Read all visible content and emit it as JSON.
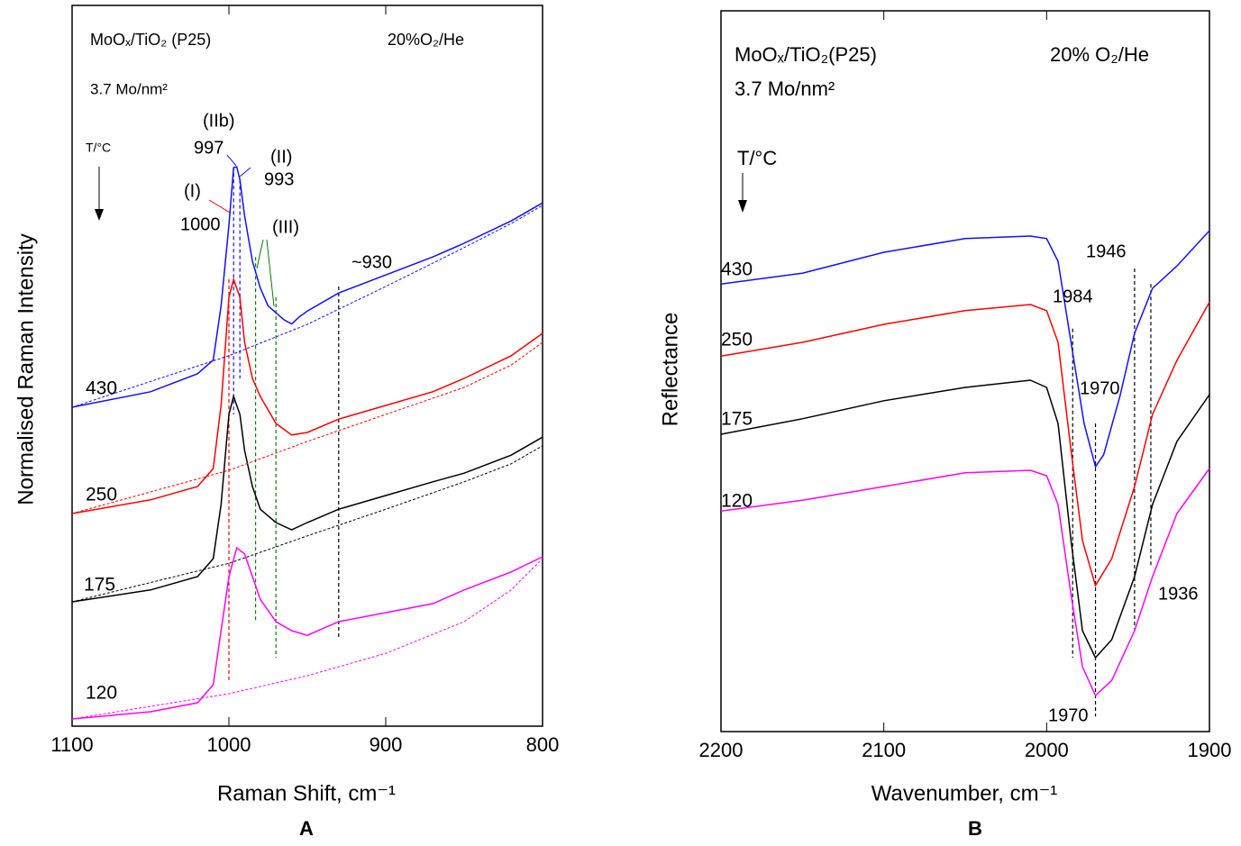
{
  "chart_data": [
    {
      "type": "line",
      "panel_label": "A",
      "x_label": "Raman Shift, cm⁻¹",
      "y_label": "Normalised Raman Intensity",
      "xlim": [
        1100,
        800
      ],
      "xticks": [
        1100,
        1000,
        900,
        800
      ],
      "ylim": [
        0,
        100
      ],
      "annotations": [
        {
          "text": "MoOₓ/TiO₂ (P25)",
          "color": "#000000"
        },
        {
          "text": "20%O₂/He",
          "color": "#000000"
        },
        {
          "text": "3.7 Mo/nm²",
          "color": "#000000"
        },
        {
          "text": "T/°C",
          "color": "#000000"
        },
        {
          "text": "(IIb)",
          "color": "#1010ff"
        },
        {
          "text": "997",
          "color": "#1010ff"
        },
        {
          "text": "(II)",
          "color": "#1010ff"
        },
        {
          "text": "993",
          "color": "#1010ff"
        },
        {
          "text": "(I)",
          "color": "#ff0000"
        },
        {
          "text": "1000",
          "color": "#ff0000"
        },
        {
          "text": "(III)",
          "color": "#008000"
        },
        {
          "text": "~930",
          "color": "#000000"
        }
      ],
      "reference_lines": [
        {
          "x": 1000,
          "y": [
            62,
            6
          ],
          "color": "#ff0000"
        },
        {
          "x": 997,
          "y": [
            77.6,
            43.25
          ],
          "color": "#1010ff"
        },
        {
          "x": 993,
          "y": [
            75.8,
            48.25
          ],
          "color": "#1010ff"
        },
        {
          "x": 983,
          "y": [
            65.1,
            14.5
          ],
          "color": "#008000"
        },
        {
          "x": 970,
          "y": [
            59.5,
            9.5
          ],
          "color": "#008000"
        },
        {
          "x": 930,
          "y": [
            61,
            12
          ],
          "color": "#000000"
        }
      ],
      "series": [
        {
          "name": "430",
          "color": "#1010ff",
          "x": [
            1100,
            1050,
            1020,
            1010,
            1005,
            1000,
            997,
            995,
            993,
            990,
            985,
            980,
            975,
            965,
            960,
            955,
            950,
            930,
            900,
            870,
            850,
            820,
            800
          ],
          "values": [
            44.25,
            46.4,
            48.9,
            50.8,
            58.3,
            69.5,
            77.5,
            77.6,
            75.8,
            70.8,
            64.5,
            60.8,
            58.3,
            56.4,
            55.8,
            56.8,
            57.6,
            60.1,
            62.6,
            65.1,
            67,
            70.1,
            72.6
          ]
        },
        {
          "name": "250",
          "color": "#ff0000",
          "x": [
            1100,
            1050,
            1020,
            1010,
            1005,
            1000,
            997,
            993,
            990,
            985,
            980,
            970,
            960,
            950,
            930,
            900,
            870,
            850,
            820,
            800
          ],
          "values": [
            29.5,
            31.4,
            33.25,
            35.75,
            44.5,
            59.5,
            62,
            59.5,
            53.25,
            48.25,
            45.75,
            42,
            40.4,
            40.75,
            42.6,
            44.5,
            46.4,
            48.25,
            51.4,
            54.5
          ]
        },
        {
          "name": "175",
          "color": "#000000",
          "x": [
            1100,
            1050,
            1020,
            1010,
            1005,
            1000,
            997,
            993,
            990,
            985,
            980,
            970,
            960,
            950,
            930,
            900,
            870,
            850,
            820,
            800
          ],
          "values": [
            17.25,
            18.9,
            20.75,
            23.25,
            30.75,
            43.25,
            45.75,
            43.25,
            38.25,
            33.25,
            30.1,
            28.25,
            27.25,
            28.25,
            30.1,
            32,
            33.9,
            35.1,
            37.6,
            40.1
          ]
        },
        {
          "name": "120",
          "color": "#ff00ff",
          "x": [
            1100,
            1050,
            1020,
            1010,
            1005,
            1000,
            995,
            990,
            985,
            980,
            970,
            960,
            950,
            930,
            900,
            870,
            850,
            820,
            800
          ],
          "values": [
            1,
            2,
            3.25,
            5.75,
            13.25,
            20.75,
            24.75,
            23.9,
            20.75,
            17.6,
            14.5,
            13.25,
            12.6,
            14.5,
            15.75,
            17,
            18.9,
            21.4,
            23.5
          ]
        },
        {
          "color": "#1010ff",
          "dashed": true,
          "x": [
            1100,
            1000,
            950,
            900,
            850,
            820,
            800
          ],
          "values": [
            44.25,
            51.4,
            55.75,
            61,
            66.4,
            69.75,
            72.25
          ]
        },
        {
          "color": "#ff0000",
          "dashed": true,
          "x": [
            1100,
            1000,
            950,
            900,
            850,
            820,
            800
          ],
          "values": [
            29.5,
            35.5,
            39.5,
            43.25,
            47,
            50.1,
            53.25
          ]
        },
        {
          "color": "#000000",
          "dashed": true,
          "x": [
            1100,
            1000,
            950,
            900,
            850,
            820,
            800
          ],
          "values": [
            17.25,
            22.6,
            26.4,
            30.1,
            33.9,
            36.4,
            38.9
          ]
        },
        {
          "color": "#ff00ff",
          "dashed": true,
          "x": [
            1100,
            1000,
            950,
            900,
            850,
            820,
            800
          ],
          "values": [
            1,
            4.5,
            7,
            10.1,
            14.5,
            18.9,
            23.25
          ]
        }
      ]
    },
    {
      "type": "line",
      "panel_label": "B",
      "x_label": "Wavenumber, cm⁻¹",
      "y_label": "Reflectance",
      "xlim": [
        2200,
        1900
      ],
      "xticks": [
        2200,
        2100,
        2000,
        1900
      ],
      "ylim": [
        0,
        100
      ],
      "annotations": [
        {
          "text": "MoOₓ/TiO₂(P25)",
          "color": "#000000"
        },
        {
          "text": "20% O₂/He",
          "color": "#000000"
        },
        {
          "text": "3.7 Mo/nm²",
          "color": "#000000"
        },
        {
          "text": "T/°C",
          "color": "#000000"
        },
        {
          "text": "1984",
          "color": "#1010ff"
        },
        {
          "text": "1946",
          "color": "#1010ff"
        },
        {
          "text": "1970",
          "color": "#1010ff"
        },
        {
          "text": "1936",
          "color": "#ff00ff"
        },
        {
          "text": "1970",
          "color": "#ff00ff"
        }
      ],
      "reference_lines": [
        {
          "x": 1984,
          "y": [
            55.9,
            10.25
          ],
          "color": "#000000"
        },
        {
          "x": 1970,
          "y": [
            42.75,
            2.1
          ],
          "color": "#000000"
        },
        {
          "x": 1946,
          "y": [
            64.25,
            14
          ],
          "color": "#000000"
        },
        {
          "x": 1936,
          "y": [
            62.1,
            22.75
          ],
          "color": "#000000"
        }
      ],
      "series": [
        {
          "name": "430",
          "color": "#1010ff",
          "x": [
            2200,
            2150,
            2100,
            2050,
            2010,
            2000,
            1993,
            1985,
            1977,
            1970,
            1965,
            1955,
            1946,
            1935,
            1920,
            1900
          ],
          "values": [
            62.1,
            63.6,
            66.5,
            68.4,
            68.75,
            68.4,
            65.25,
            54,
            42.75,
            36.75,
            38.4,
            46.5,
            55.25,
            61.5,
            64.6,
            69.5
          ]
        },
        {
          "name": "250",
          "color": "#ff0000",
          "x": [
            2200,
            2150,
            2100,
            2050,
            2010,
            2000,
            1993,
            1985,
            1978,
            1970,
            1960,
            1946,
            1935,
            1920,
            1900
          ],
          "values": [
            52.1,
            54,
            56.5,
            58.4,
            59.25,
            58.4,
            54,
            39,
            26.5,
            20.25,
            24,
            34,
            44,
            51.5,
            59.6
          ]
        },
        {
          "name": "175",
          "color": "#000000",
          "x": [
            2200,
            2150,
            2100,
            2050,
            2010,
            2000,
            1993,
            1985,
            1978,
            1970,
            1960,
            1946,
            1935,
            1920,
            1900
          ],
          "values": [
            41.25,
            43.4,
            45.9,
            47.75,
            48.75,
            47.75,
            42.75,
            26.5,
            14,
            10.25,
            12.75,
            21.5,
            31.5,
            40.25,
            46.75
          ]
        },
        {
          "name": "120",
          "color": "#ff00ff",
          "x": [
            2200,
            2150,
            2100,
            2050,
            2010,
            2000,
            1993,
            1985,
            1978,
            1970,
            1960,
            1946,
            1935,
            1920,
            1900
          ],
          "values": [
            30.6,
            32.1,
            34,
            35.9,
            36.25,
            35.5,
            31.5,
            19,
            9,
            5,
            7.1,
            14,
            21.5,
            30.25,
            36.5
          ]
        }
      ]
    }
  ]
}
